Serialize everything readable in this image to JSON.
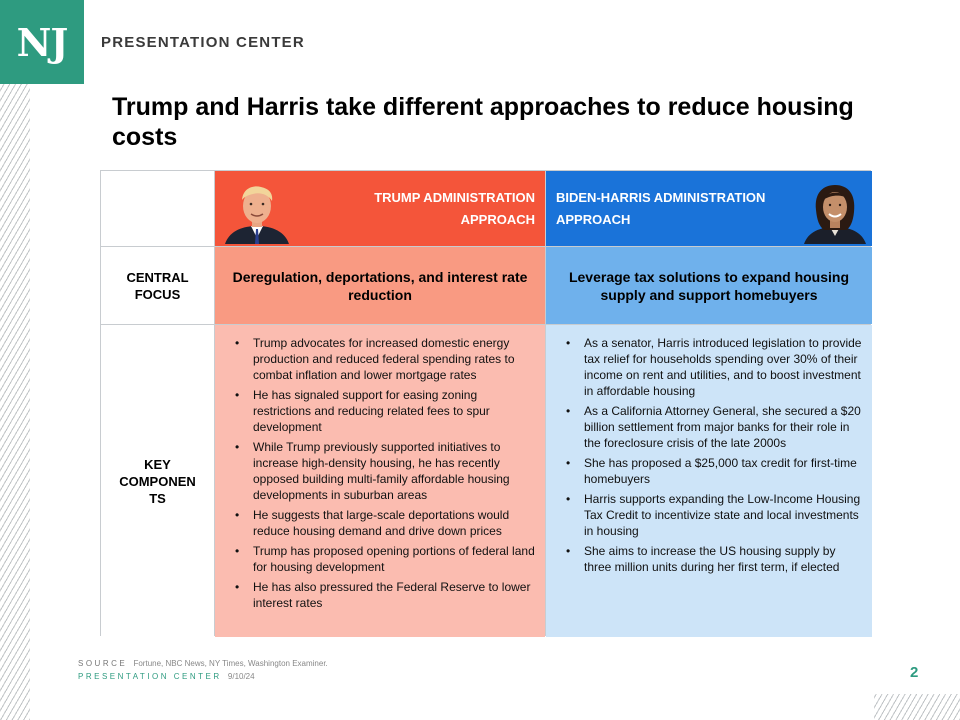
{
  "brand": {
    "logo": "NJ",
    "name": "PRESENTATION CENTER"
  },
  "title": "Trump and Harris take different approaches to reduce housing costs",
  "table": {
    "trump_header": [
      "TRUMP ADMINISTRATION",
      "APPROACH"
    ],
    "harris_header": [
      "BIDEN-HARRIS ADMINISTRATION",
      "APPROACH"
    ],
    "row_central_label": [
      "CENTRAL",
      "FOCUS"
    ],
    "row_key_label": [
      "KEY",
      "COMPONEN",
      "TS"
    ],
    "trump_focus": "Deregulation, deportations, and interest rate reduction",
    "harris_focus": "Leverage tax solutions to expand housing supply and support homebuyers",
    "trump_points": [
      "Trump advocates for increased domestic energy production and reduced federal spending rates to combat inflation and lower mortgage rates",
      "He has signaled support for easing zoning restrictions and reducing related fees to spur development",
      "While Trump previously supported initiatives to increase high-density housing, he has recently opposed building multi-family affordable housing developments in suburban areas",
      "He suggests that large-scale deportations would reduce housing demand and drive down prices",
      "Trump has proposed opening portions of federal land for housing development",
      "He has also pressured the Federal Reserve to lower interest rates"
    ],
    "harris_points": [
      "As a senator, Harris introduced legislation to provide tax relief for households spending over 30% of their income on rent and utilities, and to boost investment in affordable housing",
      "As a California Attorney General, she secured a $20 billion settlement from major banks for their role in the foreclosure crisis of the late 2000s",
      "She has proposed a $25,000 tax credit for first-time homebuyers",
      "Harris supports expanding the Low-Income Housing Tax Credit to incentivize state and local investments in housing",
      "She aims to increase the US housing supply by three million units during her first term, if elected"
    ]
  },
  "footer": {
    "source_label": "SOURCE",
    "source_text": "Fortune, NBC News, NY Times, Washington Examiner.",
    "pc_label": "PRESENTATION CENTER",
    "date": "9/10/24",
    "page": "2"
  },
  "colors": {
    "brand_green": "#2e9b80",
    "trump_header": "#f4553a",
    "trump_focus": "#f99a82",
    "trump_body": "#fbbcb0",
    "harris_header": "#1a73d9",
    "harris_focus": "#6fb1ec",
    "harris_body": "#cde4f8"
  }
}
